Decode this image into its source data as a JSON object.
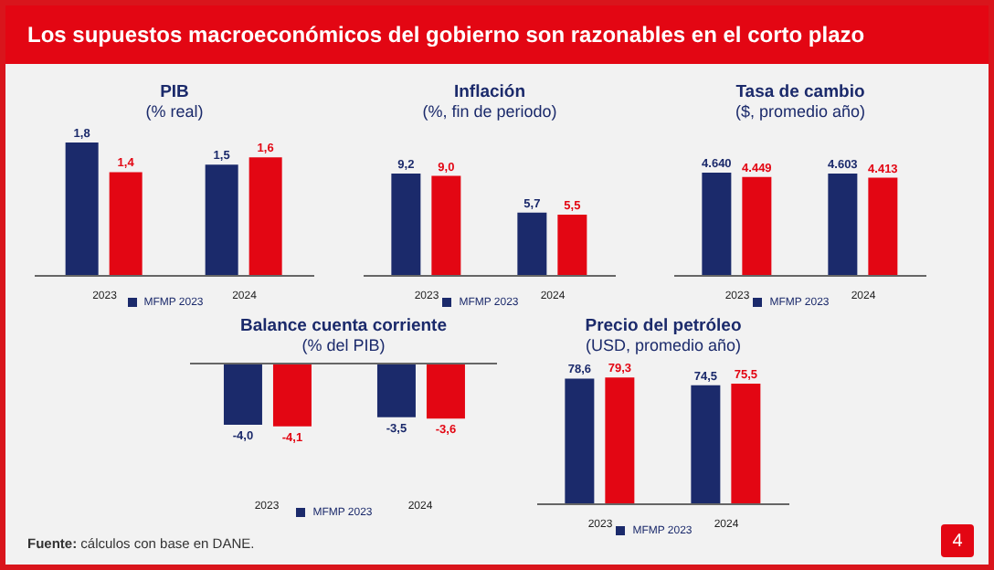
{
  "chart_data": [
    {
      "type": "bar",
      "title": "PIB",
      "subtitle": "(% real)",
      "categories": [
        "2023",
        "2024"
      ],
      "series": [
        {
          "name": "MFMP 2023",
          "color": "#1b2a6b",
          "values": [
            1.8,
            1.5
          ],
          "value_labels": [
            "1,8",
            "1,5"
          ]
        },
        {
          "color": "#e30613",
          "values": [
            1.4,
            1.6
          ],
          "value_labels": [
            "1,4",
            "1,6"
          ]
        }
      ],
      "tick_labels": "x",
      "grid": false,
      "legend": "bottom",
      "annotations": [
        "Los supuestos macroeconómicos del gobierno son razonables en el corto plazo",
        "Fuente: cálculos con base en DANE.",
        "4"
      ]
    },
    {
      "type": "bar",
      "title": "Inflación",
      "subtitle": "(%, fin de periodo)",
      "categories": [
        "2023",
        "2024"
      ],
      "series": [
        {
          "name": "MFMP 2023",
          "color": "#1b2a6b",
          "values": [
            9.2,
            5.7
          ],
          "value_labels": [
            "9,2",
            "5,7"
          ]
        },
        {
          "color": "#e30613",
          "values": [
            9.0,
            5.5
          ],
          "value_labels": [
            "9,0",
            "5,5"
          ]
        }
      ],
      "tick_labels": "x",
      "grid": false,
      "legend": "bottom"
    },
    {
      "type": "bar",
      "title": "Tasa de cambio",
      "subtitle": "($, promedio año)",
      "categories": [
        "2023",
        "2024"
      ],
      "series": [
        {
          "name": "MFMP 2023",
          "color": "#1b2a6b",
          "values": [
            4640,
            4603
          ],
          "value_labels": [
            "4.640",
            "4.603"
          ]
        },
        {
          "color": "#e30613",
          "values": [
            4449,
            4413
          ],
          "value_labels": [
            "4.449",
            "4.413"
          ]
        }
      ],
      "tick_labels": "x",
      "grid": false,
      "legend": "bottom"
    },
    {
      "type": "bar",
      "title": "Balance cuenta corriente",
      "subtitle": "(% del PIB)",
      "categories": [
        "2023",
        "2024"
      ],
      "series": [
        {
          "name": "MFMP 2023",
          "color": "#1b2a6b",
          "values": [
            -4.0,
            -3.5
          ],
          "value_labels": [
            "-4,0",
            "-3,5"
          ]
        },
        {
          "color": "#e30613",
          "values": [
            -4.1,
            -3.6
          ],
          "value_labels": [
            "-4,1",
            "-3,6"
          ]
        }
      ],
      "tick_labels": "x",
      "grid": false,
      "legend": "bottom"
    },
    {
      "type": "bar",
      "title": "Precio del petróleo",
      "subtitle": "(USD, promedio año)",
      "categories": [
        "2023",
        "2024"
      ],
      "series": [
        {
          "name": "MFMP 2023",
          "color": "#1b2a6b",
          "values": [
            78.6,
            74.5
          ],
          "value_labels": [
            "78,6",
            "74,5"
          ]
        },
        {
          "color": "#e30613",
          "values": [
            79.3,
            75.5
          ],
          "value_labels": [
            "79,3",
            "75,5"
          ]
        }
      ],
      "tick_labels": "x",
      "grid": false,
      "legend": "bottom"
    }
  ]
}
